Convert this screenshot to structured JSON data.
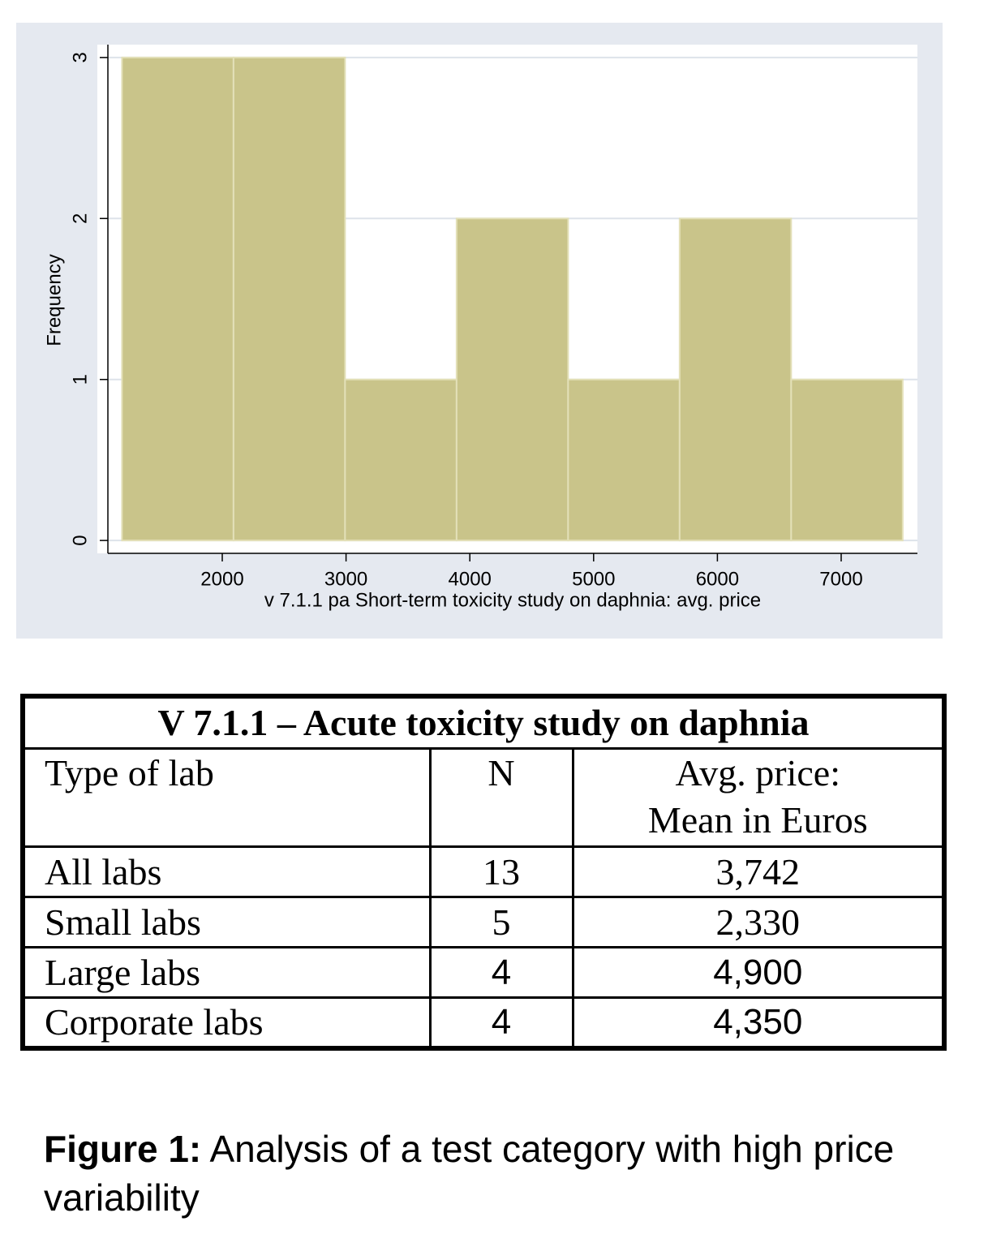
{
  "chart_data": {
    "type": "histogram",
    "x_label": "v 7.1.1 pa Short-term toxicity study on daphnia: avg. price",
    "y_label": "Frequency",
    "bins": [
      1190,
      2091,
      2992,
      3893,
      4794,
      5695,
      6596,
      7497
    ],
    "counts": [
      3,
      3,
      1,
      2,
      1,
      2,
      1
    ],
    "color": "#c9c48a",
    "xlim": [
      1076,
      7616
    ],
    "xticks": [
      2000,
      3000,
      4000,
      5000,
      6000,
      7000
    ],
    "ylim": [
      -0.08,
      3.08
    ],
    "yticks": [
      0,
      1,
      2,
      3
    ],
    "grid": true
  },
  "table": {
    "title": "V 7.1.1 – Acute toxicity study on daphnia",
    "header": {
      "lab": "Type of lab",
      "n": "N",
      "price": [
        "Avg. price:",
        "Mean in Euros"
      ]
    },
    "rows": [
      [
        "All labs",
        13,
        "3,742"
      ],
      [
        "Small labs",
        5,
        "2,330"
      ],
      [
        "Large labs",
        4,
        "4,900"
      ],
      [
        "Corporate labs",
        4,
        "4,350"
      ]
    ]
  },
  "caption": {
    "label": "Figure 1:",
    "text": "Analysis of a test category with high price variability"
  }
}
